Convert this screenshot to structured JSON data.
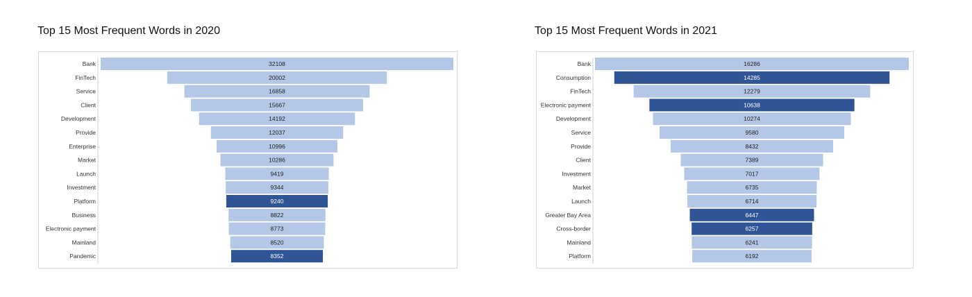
{
  "chart_data": [
    {
      "type": "bar",
      "title": "Top 15 Most Frequent Words in 2020",
      "layout": "funnel",
      "categories": [
        "Bank",
        "FinTech",
        "Service",
        "Client",
        "Development",
        "Provide",
        "Enterprise",
        "Market",
        "Launch",
        "Investment",
        "Platform",
        "Business",
        "Electronic payment",
        "Mainland",
        "Pandemic"
      ],
      "values": [
        32108,
        20002,
        16858,
        15667,
        14192,
        12037,
        10996,
        10286,
        9419,
        9344,
        9240,
        8822,
        8773,
        8520,
        8352
      ],
      "highlighted": [
        "Platform",
        "Pandemic"
      ],
      "colors": {
        "normal": "#b4c7e7",
        "highlight": "#2f5597",
        "normal_text": "#222222",
        "highlight_text": "#ffffff"
      }
    },
    {
      "type": "bar",
      "title": "Top 15 Most Frequent Words in 2021",
      "layout": "funnel",
      "categories": [
        "Bank",
        "Consumption",
        "FinTech",
        "Electronic payment",
        "Development",
        "Service",
        "Provide",
        "Client",
        "Investment",
        "Market",
        "Launch",
        "Greater Bay Area",
        "Cross-border",
        "Mainland",
        "Platform"
      ],
      "values": [
        16286,
        14285,
        12279,
        10638,
        10274,
        9580,
        8432,
        7389,
        7017,
        6735,
        6714,
        6447,
        6257,
        6241,
        6192
      ],
      "highlighted": [
        "Consumption",
        "Electronic payment",
        "Greater Bay Area",
        "Cross-border"
      ],
      "colors": {
        "normal": "#b4c7e7",
        "highlight": "#2f5597",
        "normal_text": "#222222",
        "highlight_text": "#ffffff"
      }
    }
  ]
}
